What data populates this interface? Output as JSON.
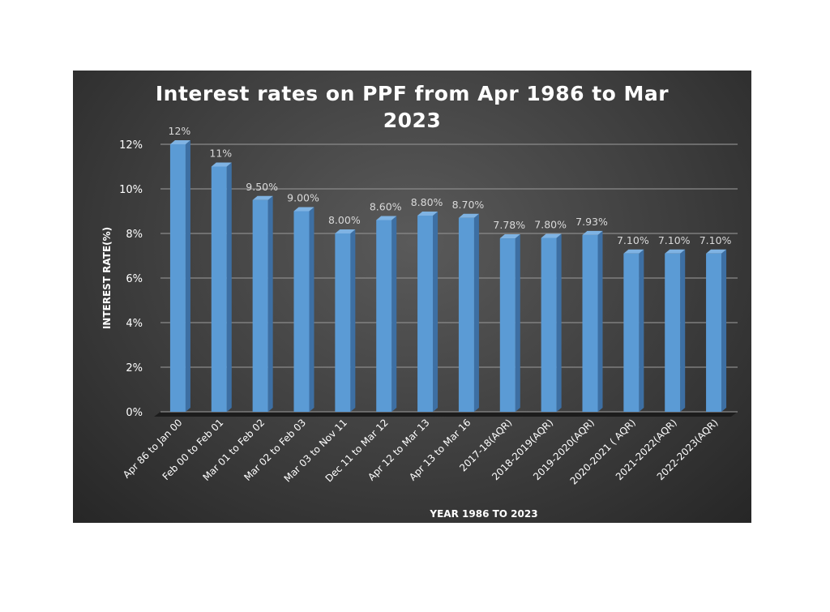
{
  "chart_data": {
    "type": "bar",
    "title_line1": "Interest rates on PPF from Apr 1986 to Mar",
    "title_line2": "2023",
    "xlabel": "YEAR 1986 TO 2023",
    "ylabel": "INTEREST RATE(%)",
    "ylim": [
      0,
      12
    ],
    "y_ticks": [
      {
        "value": 0,
        "label": "0%"
      },
      {
        "value": 2,
        "label": "2%"
      },
      {
        "value": 4,
        "label": "4%"
      },
      {
        "value": 6,
        "label": "6%"
      },
      {
        "value": 8,
        "label": "8%"
      },
      {
        "value": 10,
        "label": "10%"
      },
      {
        "value": 12,
        "label": "12%"
      }
    ],
    "grid": true,
    "categories": [
      "Apr 86  to Jan 00",
      "Feb 00 to Feb 01",
      "Mar 01 to Feb 02",
      "Mar 02 to Feb 03",
      "Mar 03 to Nov 11",
      "Dec 11 to Mar 12",
      "Apr 12 to Mar 13",
      "Apr 13 to Mar 16",
      "2017-18(AQR)",
      "2018-2019(AQR)",
      "2019-2020(AQR)",
      "2020-2021 ( AQR)",
      "2021-2022(AQR)",
      "2022-2023(AQR)"
    ],
    "values": [
      12,
      11,
      9.5,
      9.0,
      8.0,
      8.6,
      8.8,
      8.7,
      7.78,
      7.8,
      7.93,
      7.1,
      7.1,
      7.1
    ],
    "data_labels": [
      "12%",
      "11%",
      "9.50%",
      "9.00%",
      "8.00%",
      "8.60%",
      "8.80%",
      "8.70%",
      "7.78%",
      "7.80%",
      "7.93%",
      "7.10%",
      "7.10%",
      "7.10%"
    ],
    "colors": {
      "bar_front": "#5b9bd5",
      "bar_side": "#3d6fa3",
      "bar_top": "#7fb3e3",
      "gridline": "#8a8a8a",
      "text": "#ffffff",
      "data_label": "#d9d9d9"
    }
  }
}
